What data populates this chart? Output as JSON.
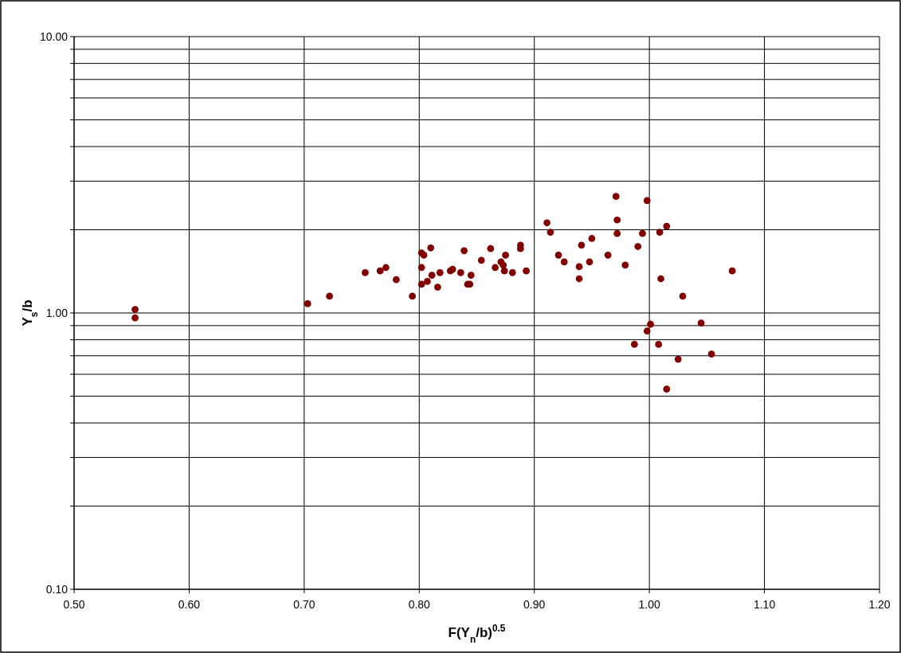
{
  "chart_data": {
    "type": "scatter",
    "xlabel": "F(Y$_{n}$/b)$^{0.5}$",
    "ylabel": "Y$_{s}$/b",
    "log": "y",
    "grid": true,
    "marker": "circle",
    "xlim": [
      0.5,
      1.2
    ],
    "ylim": [
      0.1,
      10
    ],
    "xticks": [
      {
        "value": 0.5,
        "label": "0.50"
      },
      {
        "value": 0.6,
        "label": "0.60"
      },
      {
        "value": 0.7,
        "label": "0.70"
      },
      {
        "value": 0.8,
        "label": "0.80"
      },
      {
        "value": 0.9,
        "label": "0.90"
      },
      {
        "value": 1.0,
        "label": "1.00"
      },
      {
        "value": 1.1,
        "label": "1.10"
      },
      {
        "value": 1.2,
        "label": "1.20"
      }
    ],
    "yticks": [
      {
        "value": 0.1,
        "label": "0.10"
      },
      {
        "value": 0.2,
        "label": null
      },
      {
        "value": 0.3,
        "label": null
      },
      {
        "value": 0.4,
        "label": null
      },
      {
        "value": 0.5,
        "label": null
      },
      {
        "value": 0.6,
        "label": null
      },
      {
        "value": 0.7,
        "label": null
      },
      {
        "value": 0.8,
        "label": null
      },
      {
        "value": 0.9,
        "label": null
      },
      {
        "value": 1,
        "label": "1.00"
      },
      {
        "value": 2,
        "label": null
      },
      {
        "value": 3,
        "label": null
      },
      {
        "value": 4,
        "label": null
      },
      {
        "value": 5,
        "label": null
      },
      {
        "value": 6,
        "label": null
      },
      {
        "value": 7,
        "label": null
      },
      {
        "value": 8,
        "label": null
      },
      {
        "value": 9,
        "label": null
      },
      {
        "value": 10,
        "label": "10.00"
      }
    ],
    "series": [
      {
        "color": "#800000",
        "x": [
          0.553,
          0.553,
          0.703,
          0.722,
          0.753,
          0.766,
          0.771,
          0.78,
          0.794,
          0.802,
          0.804,
          0.802,
          0.802,
          0.807,
          0.81,
          0.811,
          0.818,
          0.816,
          0.827,
          0.829,
          0.836,
          0.839,
          0.842,
          0.845,
          0.844,
          0.854,
          0.862,
          0.866,
          0.871,
          0.873,
          0.874,
          0.875,
          0.881,
          0.888,
          0.888,
          0.893,
          0.911,
          0.914,
          0.921,
          0.926,
          0.939,
          0.939,
          0.941,
          0.948,
          0.95,
          0.964,
          0.971,
          0.972,
          0.972,
          0.979,
          0.99,
          0.994,
          0.998,
          1.009,
          1.015,
          1.01,
          1.029,
          1.072,
          1.001,
          0.998,
          0.987,
          1.008,
          1.025,
          1.054,
          1.045,
          1.015
        ],
        "values": [
          1.03,
          0.96,
          1.08,
          1.15,
          1.4,
          1.42,
          1.46,
          1.32,
          1.15,
          1.65,
          1.62,
          1.46,
          1.27,
          1.3,
          1.72,
          1.37,
          1.4,
          1.24,
          1.42,
          1.44,
          1.4,
          1.68,
          1.27,
          1.37,
          1.27,
          1.55,
          1.71,
          1.46,
          1.53,
          1.49,
          1.42,
          1.62,
          1.4,
          1.76,
          1.71,
          1.42,
          2.12,
          1.96,
          1.62,
          1.53,
          1.47,
          1.33,
          1.76,
          1.53,
          1.86,
          1.62,
          2.64,
          2.17,
          1.94,
          1.49,
          1.74,
          1.94,
          2.55,
          1.96,
          2.06,
          1.33,
          1.15,
          1.42,
          0.91,
          0.86,
          0.77,
          0.77,
          0.68,
          0.71,
          0.92,
          0.53
        ]
      }
    ]
  }
}
